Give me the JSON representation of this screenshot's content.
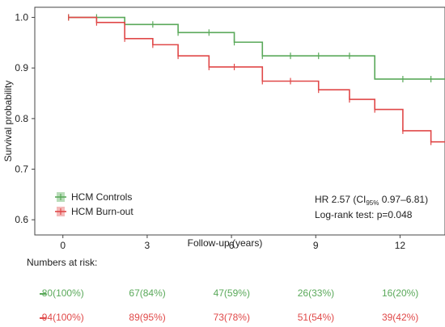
{
  "chart_data": {
    "type": "line",
    "subtype": "kaplan-meier",
    "xlabel": "Follow-up (years)",
    "ylabel": "Survival probability",
    "xlim": [
      -1,
      13.6
    ],
    "ylim": [
      0.57,
      1.02
    ],
    "xticks": [
      0,
      3,
      6,
      9,
      12
    ],
    "yticks": [
      0.6,
      0.7,
      0.8,
      0.9,
      1.0
    ],
    "yticklabels": [
      "0.6",
      "0.7",
      "0.8",
      "0.9",
      "1.0"
    ],
    "legend_position": "bottom-left",
    "series": [
      {
        "name": "HCM Controls",
        "color": "#5aa95a",
        "steps": [
          {
            "x": 0.2,
            "y": 1.0
          },
          {
            "x": 2.2,
            "y": 0.986
          },
          {
            "x": 4.1,
            "y": 0.97
          },
          {
            "x": 6.1,
            "y": 0.951
          },
          {
            "x": 7.1,
            "y": 0.924
          },
          {
            "x": 11.1,
            "y": 0.878
          }
        ],
        "end_x": 13.6,
        "censors": [
          {
            "x": 0.2,
            "y": 1.0
          },
          {
            "x": 1.2,
            "y": 1.0
          },
          {
            "x": 3.2,
            "y": 0.986
          },
          {
            "x": 4.1,
            "y": 0.97
          },
          {
            "x": 5.2,
            "y": 0.97
          },
          {
            "x": 6.1,
            "y": 0.951
          },
          {
            "x": 7.1,
            "y": 0.924
          },
          {
            "x": 8.1,
            "y": 0.924
          },
          {
            "x": 9.1,
            "y": 0.924
          },
          {
            "x": 10.2,
            "y": 0.924
          },
          {
            "x": 12.1,
            "y": 0.878
          },
          {
            "x": 13.1,
            "y": 0.878
          }
        ]
      },
      {
        "name": "HCM Burn-out",
        "color": "#e04848",
        "steps": [
          {
            "x": 0.2,
            "y": 1.0
          },
          {
            "x": 1.2,
            "y": 0.99
          },
          {
            "x": 2.2,
            "y": 0.958
          },
          {
            "x": 3.2,
            "y": 0.946
          },
          {
            "x": 4.1,
            "y": 0.924
          },
          {
            "x": 5.2,
            "y": 0.902
          },
          {
            "x": 7.1,
            "y": 0.874
          },
          {
            "x": 9.1,
            "y": 0.857
          },
          {
            "x": 10.2,
            "y": 0.838
          },
          {
            "x": 11.1,
            "y": 0.818
          },
          {
            "x": 12.1,
            "y": 0.776
          },
          {
            "x": 13.1,
            "y": 0.754
          }
        ],
        "end_x": 13.6,
        "censors": [
          {
            "x": 0.2,
            "y": 1.0
          },
          {
            "x": 1.2,
            "y": 0.99
          },
          {
            "x": 2.2,
            "y": 0.958
          },
          {
            "x": 3.2,
            "y": 0.946
          },
          {
            "x": 4.1,
            "y": 0.924
          },
          {
            "x": 5.2,
            "y": 0.902
          },
          {
            "x": 6.1,
            "y": 0.902
          },
          {
            "x": 7.1,
            "y": 0.874
          },
          {
            "x": 8.1,
            "y": 0.874
          },
          {
            "x": 9.1,
            "y": 0.857
          },
          {
            "x": 10.2,
            "y": 0.838
          },
          {
            "x": 11.1,
            "y": 0.818
          },
          {
            "x": 12.1,
            "y": 0.776
          },
          {
            "x": 13.1,
            "y": 0.754
          }
        ]
      }
    ],
    "annotation": {
      "hr_prefix": "HR 2.57 (CI",
      "hr_sub": "95%",
      "hr_suffix": " 0.97–6.81)",
      "logrank": "Log-rank test: p=0.048"
    },
    "risk_table": {
      "title": "Numbers at risk:",
      "rows": [
        {
          "series": "HCM Controls",
          "color": "#5aa95a",
          "values": [
            "80(100%)",
            "67(84%)",
            "47(59%)",
            "26(33%)",
            "16(20%)"
          ]
        },
        {
          "series": "HCM Burn-out",
          "color": "#e04848",
          "values": [
            "94(100%)",
            "89(95%)",
            "73(78%)",
            "51(54%)",
            "39(42%)"
          ]
        }
      ]
    }
  }
}
